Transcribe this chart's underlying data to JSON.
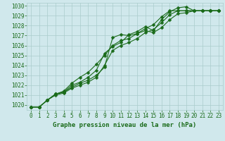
{
  "title": "Graphe pression niveau de la mer (hPa)",
  "bg_color": "#d0e8ec",
  "grid_color": "#aacccc",
  "line_color": "#1a6b1a",
  "xlim": [
    -0.5,
    23.5
  ],
  "ylim": [
    1019.5,
    1030.3
  ],
  "yticks": [
    1020,
    1021,
    1022,
    1023,
    1024,
    1025,
    1026,
    1027,
    1028,
    1029,
    1030
  ],
  "xticks": [
    0,
    1,
    2,
    3,
    4,
    5,
    6,
    7,
    8,
    9,
    10,
    11,
    12,
    13,
    14,
    15,
    16,
    17,
    18,
    19,
    20,
    21,
    22,
    23
  ],
  "series": {
    "line1": [
      1019.8,
      1019.8,
      1020.5,
      1021.1,
      1021.3,
      1021.8,
      1022.2,
      1022.5,
      1023.0,
      1023.8,
      1026.8,
      1027.1,
      1027.0,
      1027.2,
      1027.5,
      1027.3,
      1027.8,
      1028.6,
      1029.2,
      1029.3,
      1029.5,
      1029.5,
      1029.5,
      1029.5
    ],
    "line2": [
      1019.8,
      1019.8,
      1020.5,
      1021.1,
      1021.3,
      1022.0,
      1022.3,
      1022.8,
      1023.5,
      1025.2,
      1025.9,
      1026.3,
      1027.1,
      1027.4,
      1027.9,
      1027.5,
      1028.6,
      1029.4,
      1029.8,
      1029.9,
      1029.5,
      1029.5,
      1029.5,
      1029.5
    ],
    "line3": [
      1019.8,
      1019.8,
      1020.5,
      1021.1,
      1021.4,
      1022.2,
      1022.8,
      1023.3,
      1024.1,
      1025.0,
      1026.0,
      1026.5,
      1026.7,
      1027.2,
      1027.7,
      1028.1,
      1028.9,
      1029.5,
      1029.5,
      1029.5,
      1029.5,
      1029.5,
      1029.5,
      1029.5
    ],
    "line4": [
      1019.8,
      1019.8,
      1020.5,
      1021.0,
      1021.2,
      1021.7,
      1022.0,
      1022.3,
      1022.8,
      1024.0,
      1025.5,
      1026.0,
      1026.3,
      1026.7,
      1027.3,
      1027.6,
      1028.3,
      1029.1,
      1029.5,
      1029.5,
      1029.5,
      1029.5,
      1029.5,
      1029.5
    ]
  },
  "marker_size": 2.5,
  "line_width": 0.8,
  "font_size_tick": 5.5,
  "font_size_xlabel": 6.5,
  "font_color": "#1a6b1a",
  "font_family": "monospace"
}
